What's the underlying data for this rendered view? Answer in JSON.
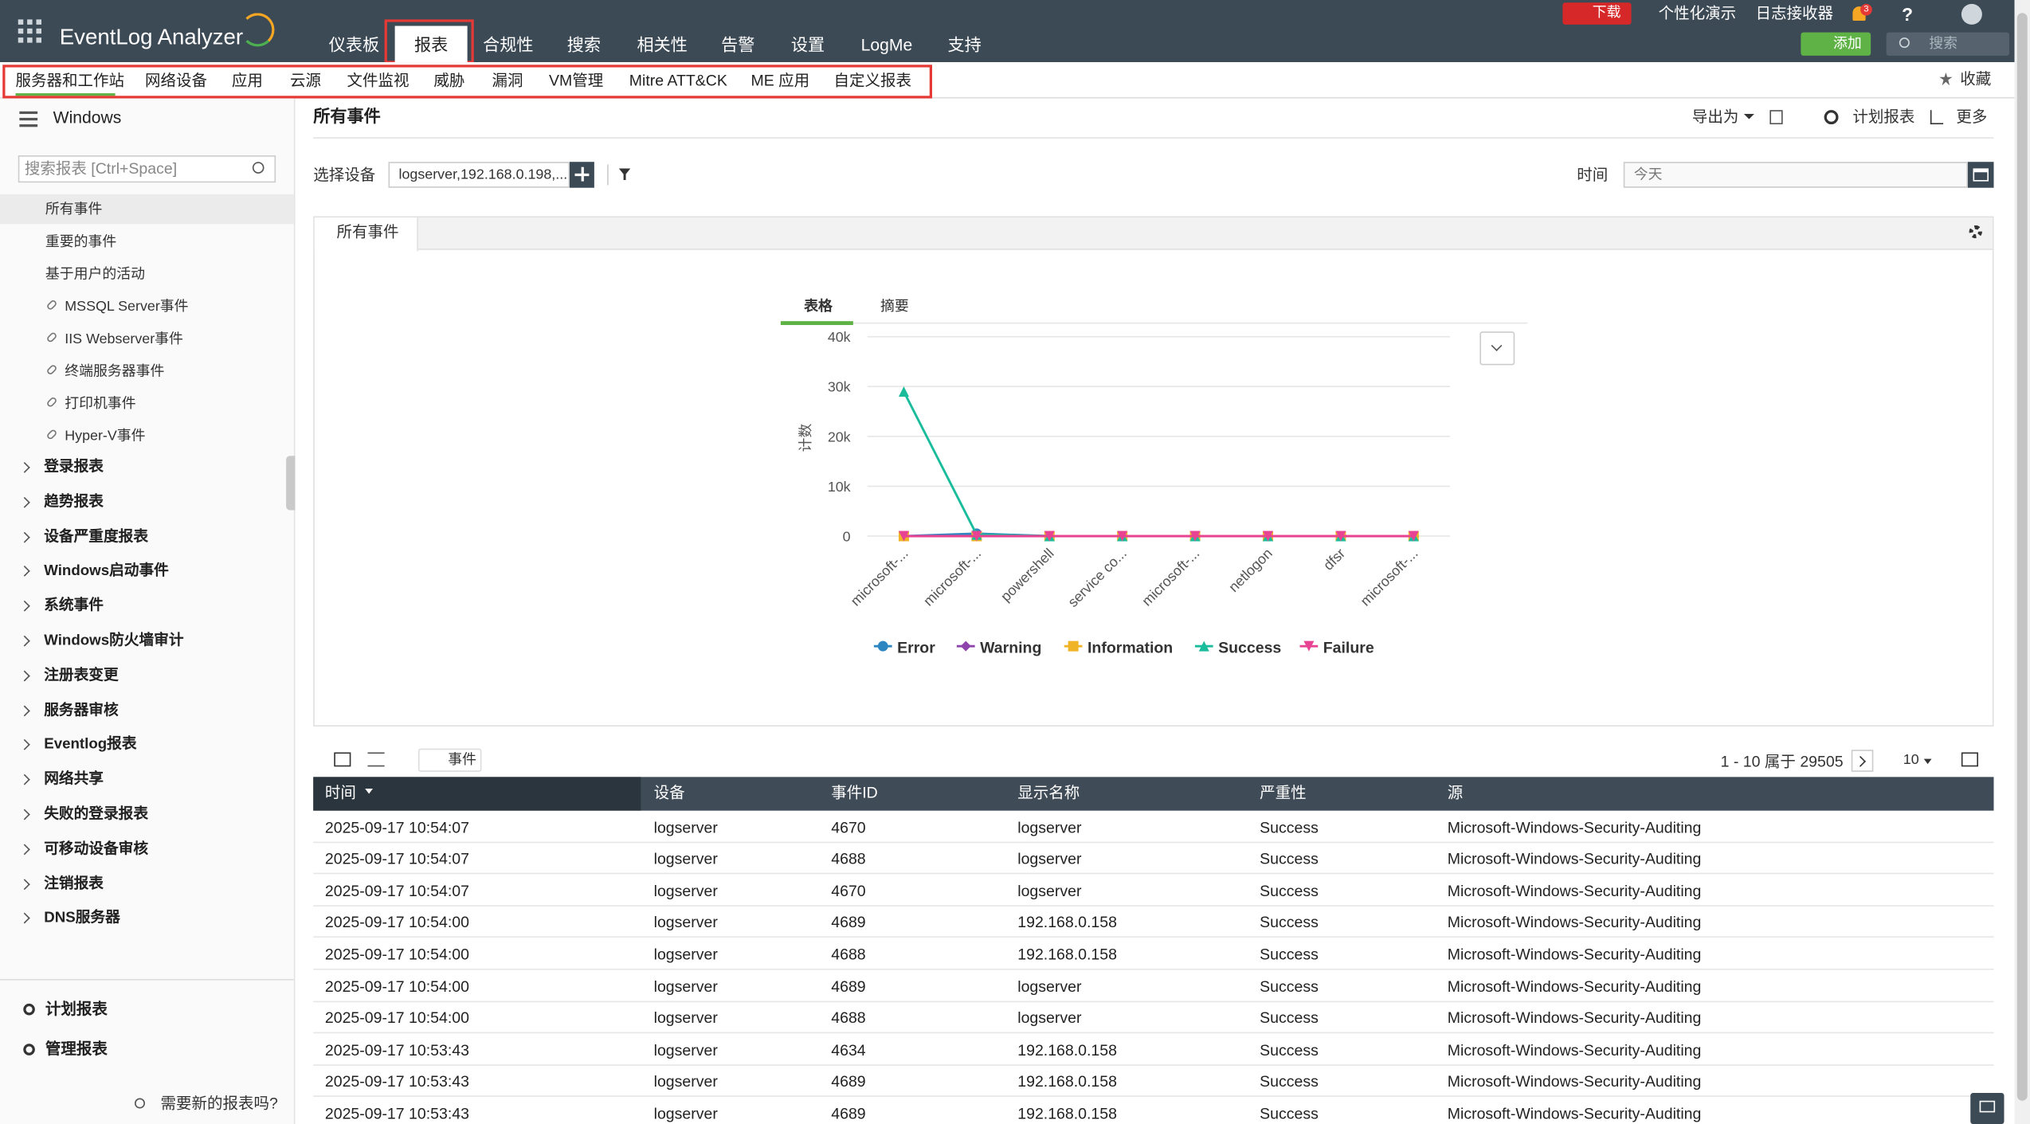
{
  "header": {
    "logo": "EventLog Analyzer",
    "nav": [
      "仪表板",
      "报表",
      "合规性",
      "搜索",
      "相关性",
      "告警",
      "设置",
      "LogMe",
      "支持"
    ],
    "top_links": [
      "下载",
      "个性化演示",
      "日志接收器"
    ],
    "notification_count": "3",
    "help": "?",
    "add_button": "添加",
    "search_placeholder": "搜索"
  },
  "subnav": {
    "items": [
      "服务器和工作站",
      "网络设备",
      "应用",
      "云源",
      "文件监视",
      "威胁",
      "漏洞",
      "VM管理",
      "Mitre ATT&CK",
      "ME 应用",
      "自定义报表"
    ],
    "favorite": "收藏"
  },
  "sidebar": {
    "title": "Windows",
    "search_placeholder": "搜索报表 [Ctrl+Space]",
    "items": [
      "所有事件",
      "重要的事件",
      "基于用户的活动"
    ],
    "linked_items": [
      "MSSQL Server事件",
      "IIS Webserver事件",
      "终端服务器事件",
      "打印机事件",
      "Hyper-V事件"
    ],
    "groups": [
      "登录报表",
      "趋势报表",
      "设备严重度报表",
      "Windows启动事件",
      "系统事件",
      "Windows防火墙审计",
      "注册表变更",
      "服务器审核",
      "Eventlog报表",
      "网络共享",
      "失败的登录报表",
      "可移动设备审核",
      "注销报表",
      "DNS服务器"
    ],
    "footer": [
      "计划报表",
      "管理报表"
    ],
    "help": "需要新的报表吗?"
  },
  "content": {
    "title": "所有事件",
    "actions": [
      "导出为",
      "计划报表",
      "更多"
    ],
    "device_label": "选择设备",
    "device_value": "logserver,192.168.0.198,...",
    "time_label": "时间",
    "time_value": "今天",
    "tab": "所有事件",
    "chart_tabs": [
      "表格",
      "摘要"
    ]
  },
  "chart_data": {
    "type": "line",
    "y_label": "计数",
    "categories": [
      "microsoft-...",
      "microsoft-...",
      "powershell",
      "service co...",
      "microsoft-...",
      "netlogon",
      "dfsr",
      "microsoft-..."
    ],
    "series": [
      {
        "name": "Error",
        "color": "#2e86c1",
        "marker": "circle",
        "values": [
          0,
          500,
          0,
          0,
          0,
          0,
          0,
          0
        ]
      },
      {
        "name": "Warning",
        "color": "#8e44ad",
        "marker": "diamond",
        "values": [
          0,
          0,
          0,
          0,
          0,
          0,
          0,
          0
        ]
      },
      {
        "name": "Information",
        "color": "#f0b429",
        "marker": "square",
        "values": [
          0,
          0,
          0,
          0,
          0,
          0,
          0,
          0
        ]
      },
      {
        "name": "Success",
        "color": "#1abc9c",
        "marker": "triangle",
        "values": [
          29000,
          300,
          0,
          0,
          0,
          0,
          0,
          0
        ]
      },
      {
        "name": "Failure",
        "color": "#e84393",
        "marker": "triangle-down",
        "values": [
          0,
          0,
          0,
          0,
          0,
          0,
          0,
          0
        ]
      }
    ],
    "ylim": [
      0,
      40000
    ],
    "yticks": [
      0,
      {
        "value": 10000,
        "label": "10k"
      },
      {
        "value": 20000,
        "label": "20k"
      },
      {
        "value": 30000,
        "label": "30k"
      },
      {
        "value": 40000,
        "label": "40k"
      }
    ],
    "grid": true
  },
  "table": {
    "toolbar": "事件",
    "pagination": "1 - 10 属于 29505",
    "page_size": "10",
    "columns": [
      "时间",
      "设备",
      "事件ID",
      "显示名称",
      "严重性",
      "源"
    ],
    "rows": [
      [
        "2025-09-17 10:54:07",
        "logserver",
        "4670",
        "logserver",
        "Success",
        "Microsoft-Windows-Security-Auditing"
      ],
      [
        "2025-09-17 10:54:07",
        "logserver",
        "4688",
        "logserver",
        "Success",
        "Microsoft-Windows-Security-Auditing"
      ],
      [
        "2025-09-17 10:54:07",
        "logserver",
        "4670",
        "logserver",
        "Success",
        "Microsoft-Windows-Security-Auditing"
      ],
      [
        "2025-09-17 10:54:00",
        "logserver",
        "4689",
        "192.168.0.158",
        "Success",
        "Microsoft-Windows-Security-Auditing"
      ],
      [
        "2025-09-17 10:54:00",
        "logserver",
        "4688",
        "192.168.0.158",
        "Success",
        "Microsoft-Windows-Security-Auditing"
      ],
      [
        "2025-09-17 10:54:00",
        "logserver",
        "4689",
        "logserver",
        "Success",
        "Microsoft-Windows-Security-Auditing"
      ],
      [
        "2025-09-17 10:54:00",
        "logserver",
        "4688",
        "logserver",
        "Success",
        "Microsoft-Windows-Security-Auditing"
      ],
      [
        "2025-09-17 10:53:43",
        "logserver",
        "4634",
        "192.168.0.158",
        "Success",
        "Microsoft-Windows-Security-Auditing"
      ],
      [
        "2025-09-17 10:53:43",
        "logserver",
        "4689",
        "192.168.0.158",
        "Success",
        "Microsoft-Windows-Security-Auditing"
      ],
      [
        "2025-09-17 10:53:43",
        "logserver",
        "4689",
        "192.168.0.158",
        "Success",
        "Microsoft-Windows-Security-Auditing"
      ]
    ]
  }
}
